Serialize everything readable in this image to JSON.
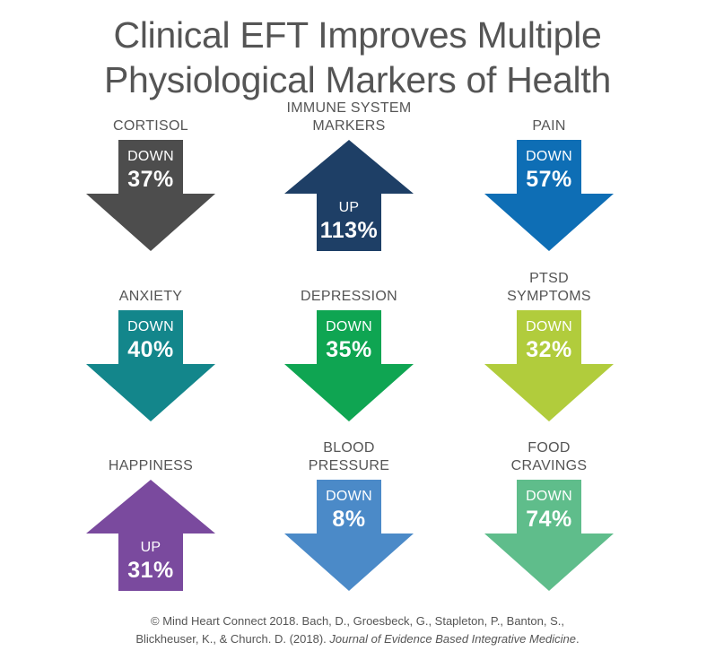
{
  "title": {
    "line1": "Clinical EFT Improves Multiple",
    "line2": "Physiological Markers of Health"
  },
  "markers": [
    {
      "label": [
        "CORTISOL"
      ],
      "direction": "DOWN",
      "percent": "37%",
      "color": "#4d4d4d"
    },
    {
      "label": [
        "IMMUNE SYSTEM",
        "MARKERS"
      ],
      "direction": "UP",
      "percent": "113%",
      "color": "#1e3f66"
    },
    {
      "label": [
        "PAIN"
      ],
      "direction": "DOWN",
      "percent": "57%",
      "color": "#0e6eb5"
    },
    {
      "label": [
        "ANXIETY"
      ],
      "direction": "DOWN",
      "percent": "40%",
      "color": "#13868b"
    },
    {
      "label": [
        "DEPRESSION"
      ],
      "direction": "DOWN",
      "percent": "35%",
      "color": "#0fa552"
    },
    {
      "label": [
        "PTSD",
        "SYMPTOMS"
      ],
      "direction": "DOWN",
      "percent": "32%",
      "color": "#b1cc3c"
    },
    {
      "label": [
        "HAPPINESS"
      ],
      "direction": "UP",
      "percent": "31%",
      "color": "#7a4a9e"
    },
    {
      "label": [
        "BLOOD",
        "PRESSURE"
      ],
      "direction": "DOWN",
      "percent": "8%",
      "color": "#4b8ac8"
    },
    {
      "label": [
        "FOOD",
        "CRAVINGS"
      ],
      "direction": "DOWN",
      "percent": "74%",
      "color": "#5fbd8b"
    }
  ],
  "footer": {
    "line1": "© Mind Heart Connect 2018. Bach, D., Groesbeck, G., Stapleton, P., Banton, S.,",
    "line2_plain": "Blickheuser, K., & Church. D. (2018). ",
    "line2_italic": "Journal of Evidence Based Integrative Medicine",
    "line2_end": "."
  }
}
